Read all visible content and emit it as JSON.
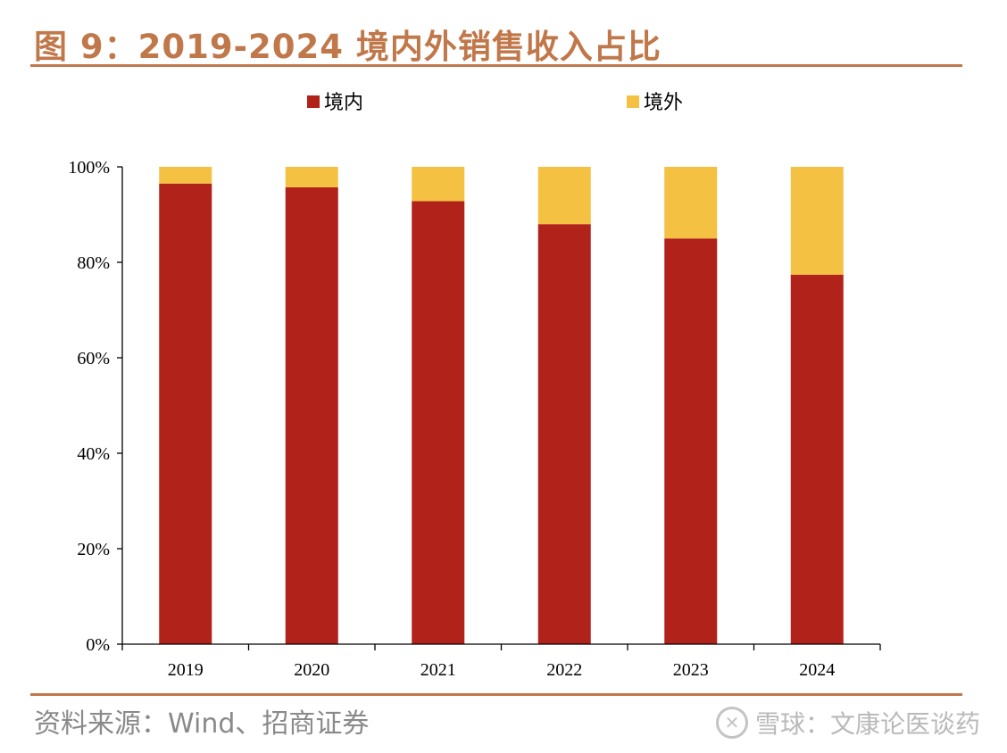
{
  "header": {
    "title": "图 9：2019-2024 境内外销售收入占比"
  },
  "footer": {
    "source": "资料来源：Wind、招商证券",
    "watermark_logo": "✕",
    "watermark_text": "雪球：文康论医谈药"
  },
  "colors": {
    "domestic": "#b0221a",
    "overseas": "#f4c142",
    "accent": "#c0784a"
  },
  "chart_data": {
    "type": "bar",
    "stacked": true,
    "categories": [
      "2019",
      "2020",
      "2021",
      "2022",
      "2023",
      "2024"
    ],
    "series": [
      {
        "name": "境内",
        "values": [
          96.5,
          95.7,
          92.8,
          88.0,
          85.0,
          77.4
        ]
      },
      {
        "name": "境外",
        "values": [
          3.5,
          4.3,
          7.2,
          12.0,
          15.0,
          22.6
        ]
      }
    ],
    "ylim": [
      0,
      100
    ],
    "yticks": [
      "0%",
      "20%",
      "40%",
      "60%",
      "80%",
      "100%"
    ],
    "legend_position": "top",
    "grid": false,
    "xlabel": "",
    "ylabel": ""
  }
}
